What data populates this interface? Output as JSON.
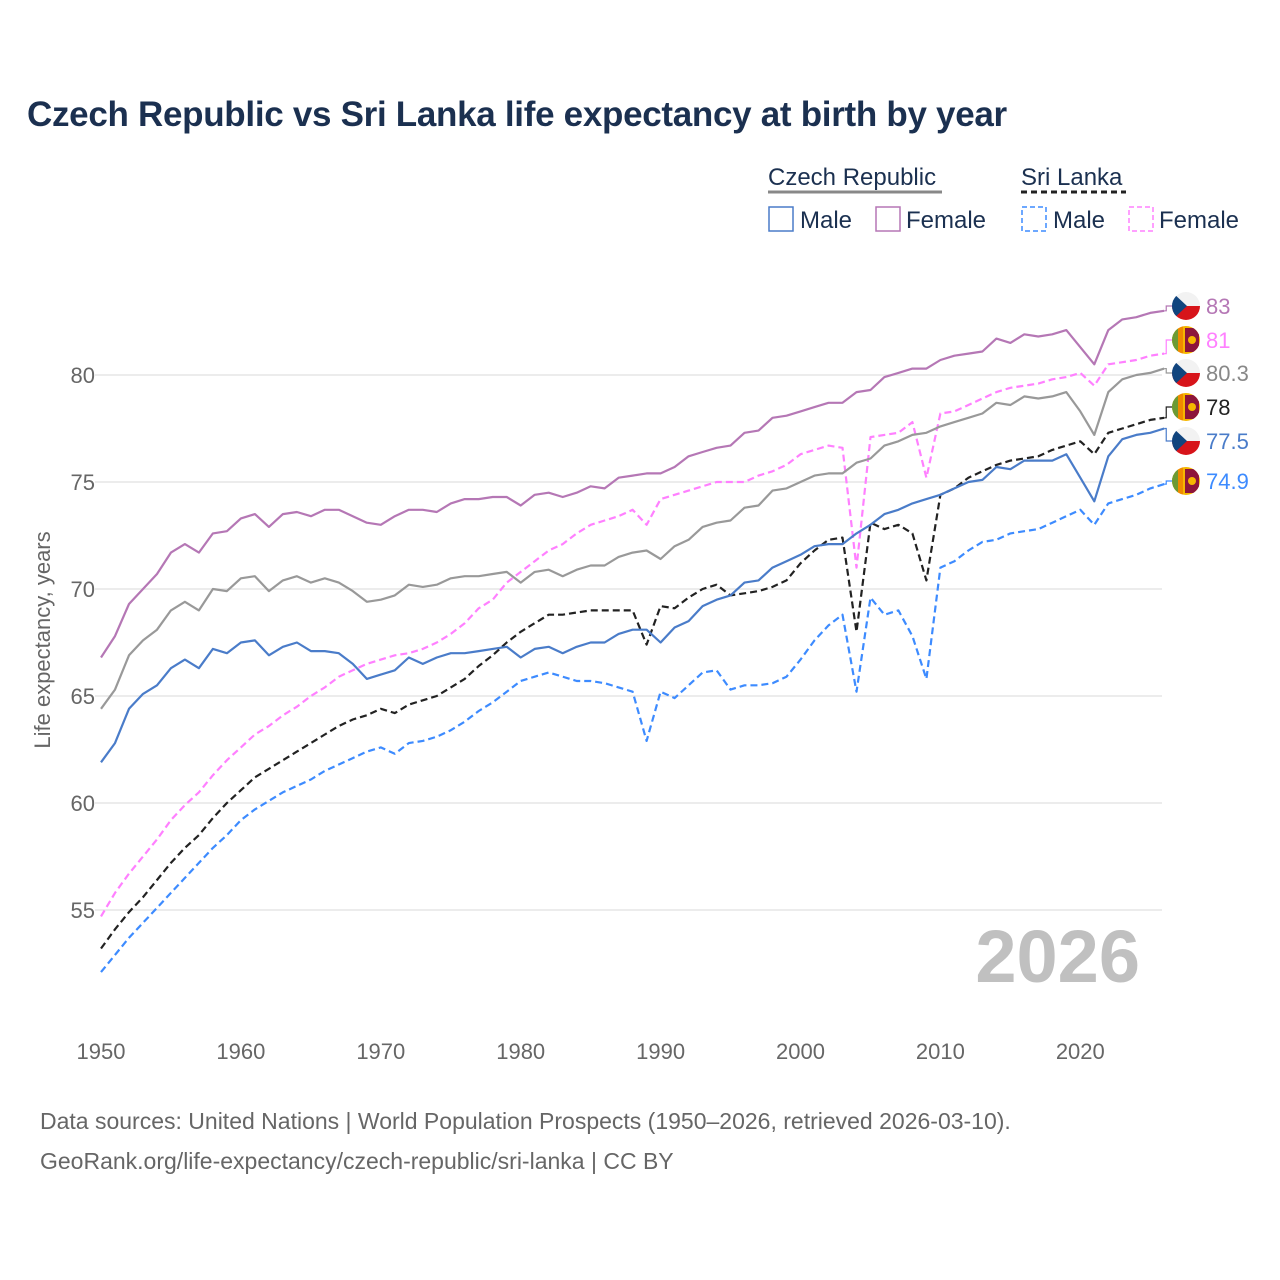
{
  "chart_data": {
    "type": "line",
    "title": "Czech Republic vs Sri Lanka life expectancy at birth by year",
    "xlabel": "",
    "ylabel": "Life expectancy, years",
    "xlim": [
      1950,
      2026
    ],
    "ylim": [
      51,
      84
    ],
    "x_ticks": [
      "1950",
      "1960",
      "1970",
      "1980",
      "1990",
      "2000",
      "2010",
      "2020"
    ],
    "y_ticks": [
      "55",
      "60",
      "65",
      "70",
      "75",
      "80"
    ],
    "grid": true,
    "year_watermark": "2026",
    "legend": {
      "placement": "top-right",
      "groups": [
        {
          "name": "Czech Republic",
          "items": [
            "Male",
            "Female"
          ]
        },
        {
          "name": "Sri Lanka",
          "items": [
            "Male",
            "Female"
          ]
        }
      ]
    },
    "x_start": 1950,
    "series": [
      {
        "name": "Czech Republic Female",
        "country": "cz",
        "color": "#b577b5",
        "dashed": false,
        "end_label": "83",
        "values": [
          66.8,
          67.8,
          69.3,
          70.0,
          70.7,
          71.7,
          72.1,
          71.7,
          72.6,
          72.7,
          73.3,
          73.5,
          72.9,
          73.5,
          73.6,
          73.4,
          73.7,
          73.7,
          73.4,
          73.1,
          73.0,
          73.4,
          73.7,
          73.7,
          73.6,
          74.0,
          74.2,
          74.2,
          74.3,
          74.3,
          73.9,
          74.4,
          74.5,
          74.3,
          74.5,
          74.8,
          74.7,
          75.2,
          75.3,
          75.4,
          75.4,
          75.7,
          76.2,
          76.4,
          76.6,
          76.7,
          77.3,
          77.4,
          78.0,
          78.1,
          78.3,
          78.5,
          78.7,
          78.7,
          79.2,
          79.3,
          79.9,
          80.1,
          80.3,
          80.3,
          80.7,
          80.9,
          81.0,
          81.1,
          81.7,
          81.5,
          81.9,
          81.8,
          81.9,
          82.1,
          81.3,
          80.5,
          82.1,
          82.6,
          82.7,
          82.9,
          83.0
        ]
      },
      {
        "name": "Sri Lanka Female",
        "country": "lk",
        "color": "#ff80ff",
        "dashed": true,
        "end_label": "81",
        "values": [
          54.7,
          55.8,
          56.7,
          57.5,
          58.3,
          59.2,
          59.9,
          60.5,
          61.3,
          62.0,
          62.6,
          63.2,
          63.6,
          64.1,
          64.5,
          65.0,
          65.4,
          65.9,
          66.2,
          66.5,
          66.7,
          66.9,
          67.0,
          67.2,
          67.5,
          67.9,
          68.4,
          69.1,
          69.5,
          70.3,
          70.8,
          71.3,
          71.8,
          72.1,
          72.6,
          73.0,
          73.2,
          73.4,
          73.7,
          73.0,
          74.2,
          74.4,
          74.6,
          74.8,
          75.0,
          75.0,
          75.0,
          75.3,
          75.5,
          75.8,
          76.3,
          76.5,
          76.7,
          76.6,
          71.0,
          77.1,
          77.2,
          77.3,
          77.8,
          75.2,
          78.2,
          78.3,
          78.6,
          78.9,
          79.2,
          79.4,
          79.5,
          79.6,
          79.8,
          79.9,
          80.1,
          79.5,
          80.5,
          80.6,
          80.7,
          80.9,
          81.0
        ]
      },
      {
        "name": "Czech Republic",
        "country": "cz",
        "color": "#999999",
        "dashed": false,
        "end_label": "80.3",
        "values": [
          64.4,
          65.3,
          66.9,
          67.6,
          68.1,
          69.0,
          69.4,
          69.0,
          70.0,
          69.9,
          70.5,
          70.6,
          69.9,
          70.4,
          70.6,
          70.3,
          70.5,
          70.3,
          69.9,
          69.4,
          69.5,
          69.7,
          70.2,
          70.1,
          70.2,
          70.5,
          70.6,
          70.6,
          70.7,
          70.8,
          70.3,
          70.8,
          70.9,
          70.6,
          70.9,
          71.1,
          71.1,
          71.5,
          71.7,
          71.8,
          71.4,
          72.0,
          72.3,
          72.9,
          73.1,
          73.2,
          73.8,
          73.9,
          74.6,
          74.7,
          75.0,
          75.3,
          75.4,
          75.4,
          75.9,
          76.1,
          76.7,
          76.9,
          77.2,
          77.3,
          77.6,
          77.8,
          78.0,
          78.2,
          78.7,
          78.6,
          79.0,
          78.9,
          79.0,
          79.2,
          78.3,
          77.2,
          79.2,
          79.8,
          80.0,
          80.1,
          80.3
        ]
      },
      {
        "name": "Sri Lanka",
        "country": "lk",
        "color": "#222222",
        "dashed": true,
        "end_label": "78",
        "values": [
          53.2,
          54.1,
          54.9,
          55.6,
          56.4,
          57.2,
          57.9,
          58.5,
          59.3,
          60.0,
          60.6,
          61.2,
          61.6,
          62.0,
          62.4,
          62.8,
          63.2,
          63.6,
          63.9,
          64.1,
          64.4,
          64.2,
          64.6,
          64.8,
          65.0,
          65.4,
          65.8,
          66.4,
          66.9,
          67.5,
          68.0,
          68.4,
          68.8,
          68.8,
          68.9,
          69.0,
          69.0,
          69.0,
          69.0,
          67.4,
          69.2,
          69.1,
          69.6,
          70.0,
          70.2,
          69.7,
          69.8,
          69.9,
          70.1,
          70.4,
          71.2,
          71.8,
          72.3,
          72.4,
          68.0,
          73.1,
          72.8,
          73.0,
          72.6,
          70.4,
          74.4,
          74.7,
          75.2,
          75.5,
          75.8,
          76.0,
          76.1,
          76.2,
          76.5,
          76.7,
          76.9,
          76.3,
          77.3,
          77.5,
          77.7,
          77.9,
          78.0
        ]
      },
      {
        "name": "Czech Republic Male",
        "country": "cz",
        "color": "#4a7cc9",
        "dashed": false,
        "end_label": "77.5",
        "values": [
          61.9,
          62.8,
          64.4,
          65.1,
          65.5,
          66.3,
          66.7,
          66.3,
          67.2,
          67.0,
          67.5,
          67.6,
          66.9,
          67.3,
          67.5,
          67.1,
          67.1,
          67.0,
          66.5,
          65.8,
          66.0,
          66.2,
          66.8,
          66.5,
          66.8,
          67.0,
          67.0,
          67.1,
          67.2,
          67.3,
          66.8,
          67.2,
          67.3,
          67.0,
          67.3,
          67.5,
          67.5,
          67.9,
          68.1,
          68.1,
          67.5,
          68.2,
          68.5,
          69.2,
          69.5,
          69.7,
          70.3,
          70.4,
          71.0,
          71.3,
          71.6,
          72.0,
          72.1,
          72.1,
          72.6,
          73.0,
          73.5,
          73.7,
          74.0,
          74.2,
          74.4,
          74.7,
          75.0,
          75.1,
          75.7,
          75.6,
          76.0,
          76.0,
          76.0,
          76.3,
          75.2,
          74.1,
          76.2,
          77.0,
          77.2,
          77.3,
          77.5
        ]
      },
      {
        "name": "Sri Lanka Male",
        "country": "lk",
        "color": "#3d8bff",
        "dashed": true,
        "end_label": "74.9",
        "values": [
          52.1,
          52.9,
          53.7,
          54.4,
          55.1,
          55.8,
          56.5,
          57.2,
          57.9,
          58.5,
          59.2,
          59.7,
          60.1,
          60.5,
          60.8,
          61.1,
          61.5,
          61.8,
          62.1,
          62.4,
          62.6,
          62.3,
          62.8,
          62.9,
          63.1,
          63.4,
          63.8,
          64.3,
          64.7,
          65.2,
          65.7,
          65.9,
          66.1,
          65.9,
          65.7,
          65.7,
          65.6,
          65.4,
          65.2,
          62.9,
          65.2,
          64.9,
          65.5,
          66.1,
          66.2,
          65.3,
          65.5,
          65.5,
          65.6,
          65.9,
          66.7,
          67.6,
          68.3,
          68.8,
          65.2,
          69.6,
          68.8,
          69.0,
          67.8,
          65.8,
          71.0,
          71.3,
          71.8,
          72.2,
          72.3,
          72.6,
          72.7,
          72.8,
          73.1,
          73.4,
          73.7,
          73.0,
          74.0,
          74.2,
          74.4,
          74.7,
          74.9
        ]
      }
    ]
  },
  "footer": {
    "line1": "Data sources: United Nations | World Population Prospects (1950–2026, retrieved 2026-03-10).",
    "line2": "GeoRank.org/life-expectancy/czech-republic/sri-lanka | CC BY"
  }
}
